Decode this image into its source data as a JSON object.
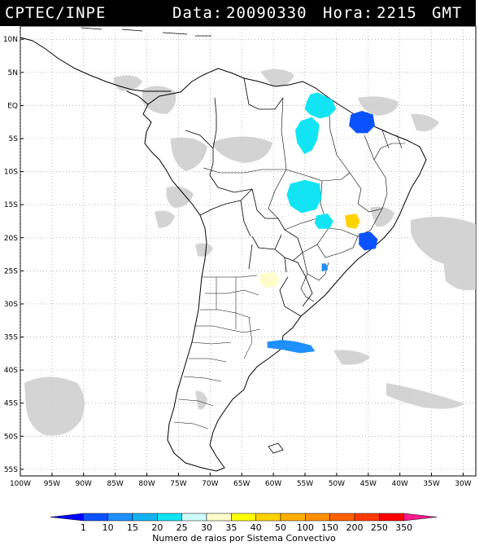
{
  "header": {
    "source": "CPTEC/INPE",
    "date_label": "Data:",
    "date_value": "20090330",
    "time_label": "Hora:",
    "time_value": "2215",
    "tz": "GMT"
  },
  "map": {
    "lat_labels": [
      "10N",
      "5N",
      "EQ",
      "5S",
      "10S",
      "15S",
      "20S",
      "25S",
      "30S",
      "35S",
      "40S",
      "45S",
      "50S",
      "55S"
    ],
    "lon_labels": [
      "100W",
      "95W",
      "90W",
      "85W",
      "80W",
      "75W",
      "70W",
      "65W",
      "60W",
      "55W",
      "50W",
      "45W",
      "40W",
      "35W",
      "30W"
    ],
    "lat_range": [
      -56,
      12
    ],
    "lon_range": [
      -100,
      -28
    ],
    "grid": "dotted",
    "storms": [
      {
        "name": "amazon-north",
        "value": 22,
        "lat": 0.0,
        "lon": -53.0
      },
      {
        "name": "para",
        "value": 22,
        "lat": -4.0,
        "lon": -54.5
      },
      {
        "name": "maranhao",
        "value": 8,
        "lat": -2.5,
        "lon": -46.0
      },
      {
        "name": "mato-grosso",
        "value": 22,
        "lat": -13.5,
        "lon": -55.0
      },
      {
        "name": "goias",
        "value": 22,
        "lat": -17.5,
        "lon": -52.0
      },
      {
        "name": "minas",
        "value": 42,
        "lat": -17.5,
        "lon": -47.5
      },
      {
        "name": "sao-paulo",
        "value": 8,
        "lat": -20.5,
        "lon": -45.0
      },
      {
        "name": "parana-dot",
        "value": 14,
        "lat": -24.5,
        "lon": -52.0
      },
      {
        "name": "chaco",
        "value": 31,
        "lat": -26.3,
        "lon": -60.5
      },
      {
        "name": "buenos-aires",
        "value": 14,
        "lat": -36.3,
        "lon": -57.5
      }
    ]
  },
  "colorbar": {
    "ticks": [
      "1",
      "10",
      "15",
      "20",
      "25",
      "30",
      "35",
      "40",
      "50",
      "100",
      "150",
      "200",
      "250",
      "350"
    ],
    "colors": [
      "#0000ff",
      "#0b52ff",
      "#1e90ff",
      "#12b4f0",
      "#12e4f4",
      "#cffcfc",
      "#fffccc",
      "#ffff00",
      "#ffd200",
      "#ffb000",
      "#ff9000",
      "#ff6000",
      "#ff3a00",
      "#ff0000",
      "#ff1a8c"
    ],
    "caption": "Numero de raios por Sistema Convectivo"
  }
}
